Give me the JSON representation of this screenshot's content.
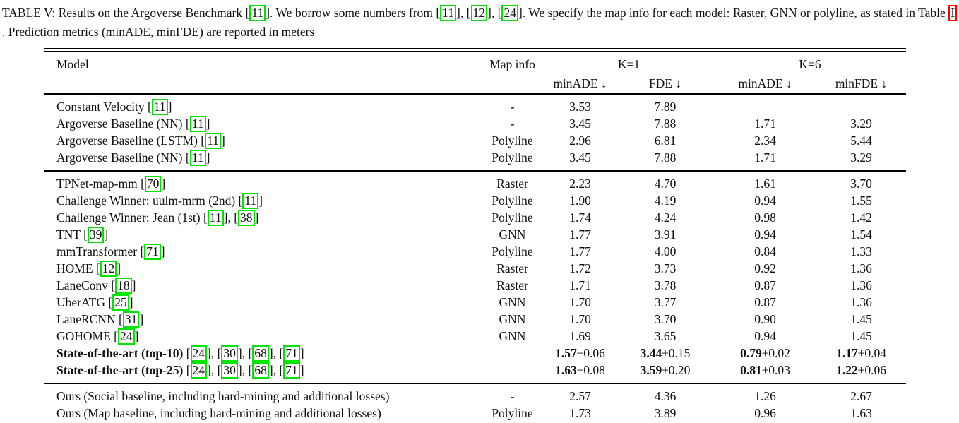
{
  "colors": {
    "citation_box": "#00e400",
    "reference_box": "#ff0000"
  },
  "caption": {
    "parts": [
      {
        "t": "TABLE V: Results on the Argoverse Benchmark ["
      },
      {
        "c": "11"
      },
      {
        "t": "]. We borrow some numbers from ["
      },
      {
        "c": "11"
      },
      {
        "t": "], ["
      },
      {
        "c": "12"
      },
      {
        "t": "], ["
      },
      {
        "c": "24"
      },
      {
        "t": "]. We specify the map info for each model: Raster, GNN or polyline, as stated in Table "
      },
      {
        "r": "I"
      },
      {
        "t": ". Prediction metrics (minADE, minFDE) are reported in meters"
      }
    ]
  },
  "table": {
    "header": {
      "model": "Model",
      "map_info": "Map info",
      "k1": "K=1",
      "k6": "K=6",
      "k1_minade": "minADE ↓",
      "k1_fde": "FDE ↓",
      "k6_minade": "minADE ↓",
      "k6_minfde": "minFDE ↓"
    },
    "groups": [
      {
        "rows": [
          {
            "model": [
              {
                "t": "Constant Velocity ["
              },
              {
                "c": "11"
              },
              {
                "t": "]"
              }
            ],
            "map": "-",
            "k1_minade": "3.53",
            "k1_fde": "7.89",
            "k6_minade": "",
            "k6_minfde": ""
          },
          {
            "model": [
              {
                "t": "Argoverse Baseline (NN) ["
              },
              {
                "c": "11"
              },
              {
                "t": "]"
              }
            ],
            "map": "-",
            "k1_minade": "3.45",
            "k1_fde": "7.88",
            "k6_minade": "1.71",
            "k6_minfde": "3.29"
          },
          {
            "model": [
              {
                "t": "Argoverse Baseline (LSTM) ["
              },
              {
                "c": "11"
              },
              {
                "t": "]"
              }
            ],
            "map": "Polyline",
            "k1_minade": "2.96",
            "k1_fde": "6.81",
            "k6_minade": "2.34",
            "k6_minfde": "5.44"
          },
          {
            "model": [
              {
                "t": "Argoverse Baseline (NN) ["
              },
              {
                "c": "11"
              },
              {
                "t": "]"
              }
            ],
            "map": "Polyline",
            "k1_minade": "3.45",
            "k1_fde": "7.88",
            "k6_minade": "1.71",
            "k6_minfde": "3.29"
          }
        ]
      },
      {
        "rows": [
          {
            "model": [
              {
                "t": "TPNet-map-mm ["
              },
              {
                "c": "70"
              },
              {
                "t": "]"
              }
            ],
            "map": "Raster",
            "k1_minade": "2.23",
            "k1_fde": "4.70",
            "k6_minade": "1.61",
            "k6_minfde": "3.70"
          },
          {
            "model": [
              {
                "t": "Challenge Winner: uulm-mrm (2nd) ["
              },
              {
                "c": "11"
              },
              {
                "t": "]"
              }
            ],
            "map": "Polyline",
            "k1_minade": "1.90",
            "k1_fde": "4.19",
            "k6_minade": "0.94",
            "k6_minfde": "1.55"
          },
          {
            "model": [
              {
                "t": "Challenge Winner: Jean (1st) ["
              },
              {
                "c": "11"
              },
              {
                "t": "], ["
              },
              {
                "c": "38"
              },
              {
                "t": "]"
              }
            ],
            "map": "Polyline",
            "k1_minade": "1.74",
            "k1_fde": "4.24",
            "k6_minade": "0.98",
            "k6_minfde": "1.42"
          },
          {
            "model": [
              {
                "t": "TNT ["
              },
              {
                "c": "39"
              },
              {
                "t": "]"
              }
            ],
            "map": "GNN",
            "k1_minade": "1.77",
            "k1_fde": "3.91",
            "k6_minade": "0.94",
            "k6_minfde": "1.54"
          },
          {
            "model": [
              {
                "t": "mmTransformer ["
              },
              {
                "c": "71"
              },
              {
                "t": "]"
              }
            ],
            "map": "Polyline",
            "k1_minade": "1.77",
            "k1_fde": "4.00",
            "k6_minade": "0.84",
            "k6_minfde": "1.33"
          },
          {
            "model": [
              {
                "t": "HOME ["
              },
              {
                "c": "12"
              },
              {
                "t": "]"
              }
            ],
            "map": "Raster",
            "k1_minade": "1.72",
            "k1_fde": "3.73",
            "k6_minade": "0.92",
            "k6_minfde": "1.36"
          },
          {
            "model": [
              {
                "t": "LaneConv ["
              },
              {
                "c": "18"
              },
              {
                "t": "]"
              }
            ],
            "map": "Raster",
            "k1_minade": "1.71",
            "k1_fde": "3.78",
            "k6_minade": "0.87",
            "k6_minfde": "1.36"
          },
          {
            "model": [
              {
                "t": "UberATG ["
              },
              {
                "c": "25"
              },
              {
                "t": "]"
              }
            ],
            "map": "GNN",
            "k1_minade": "1.70",
            "k1_fde": "3.77",
            "k6_minade": "0.87",
            "k6_minfde": "1.36"
          },
          {
            "model": [
              {
                "t": "LaneRCNN ["
              },
              {
                "c": "31"
              },
              {
                "t": "]"
              }
            ],
            "map": "GNN",
            "k1_minade": "1.70",
            "k1_fde": "3.70",
            "k6_minade": "0.90",
            "k6_minfde": "1.45"
          },
          {
            "model": [
              {
                "t": "GOHOME ["
              },
              {
                "c": "24"
              },
              {
                "t": "]"
              }
            ],
            "map": "GNN",
            "k1_minade": "1.69",
            "k1_fde": "3.65",
            "k6_minade": "0.94",
            "k6_minfde": "1.45"
          },
          {
            "model": [
              {
                "b": "State-of-the-art (top-10) "
              },
              {
                "t": "["
              },
              {
                "c": "24"
              },
              {
                "t": "], ["
              },
              {
                "c": "30"
              },
              {
                "t": "], ["
              },
              {
                "c": "68"
              },
              {
                "t": "], ["
              },
              {
                "c": "71"
              },
              {
                "t": "]"
              }
            ],
            "map": "",
            "k1_minade": [
              {
                "b": "1.57"
              },
              {
                "t": "±0.06"
              }
            ],
            "k1_fde": [
              {
                "b": "3.44"
              },
              {
                "t": "±0.15"
              }
            ],
            "k6_minade": [
              {
                "b": "0.79"
              },
              {
                "t": "±0.02"
              }
            ],
            "k6_minfde": [
              {
                "b": "1.17"
              },
              {
                "t": "±0.04"
              }
            ]
          },
          {
            "model": [
              {
                "b": "State-of-the-art (top-25) "
              },
              {
                "t": "["
              },
              {
                "c": "24"
              },
              {
                "t": "], ["
              },
              {
                "c": "30"
              },
              {
                "t": "], ["
              },
              {
                "c": "68"
              },
              {
                "t": "], ["
              },
              {
                "c": "71"
              },
              {
                "t": "]"
              }
            ],
            "map": "",
            "k1_minade": [
              {
                "b": "1.63"
              },
              {
                "t": "±0.08"
              }
            ],
            "k1_fde": [
              {
                "b": "3.59"
              },
              {
                "t": "±0.20"
              }
            ],
            "k6_minade": [
              {
                "b": "0.81"
              },
              {
                "t": "±0.03"
              }
            ],
            "k6_minfde": [
              {
                "b": "1.22"
              },
              {
                "t": "±0.06"
              }
            ]
          }
        ]
      },
      {
        "rows": [
          {
            "model": "Ours (Social baseline, including hard-mining and additional losses)",
            "map": "-",
            "k1_minade": "2.57",
            "k1_fde": "4.36",
            "k6_minade": "1.26",
            "k6_minfde": "2.67"
          },
          {
            "model": "Ours (Map baseline, including hard-mining and additional losses)",
            "map": "Polyline",
            "k1_minade": "1.73",
            "k1_fde": "3.89",
            "k6_minade": "0.96",
            "k6_minfde": "1.63"
          }
        ]
      }
    ]
  }
}
